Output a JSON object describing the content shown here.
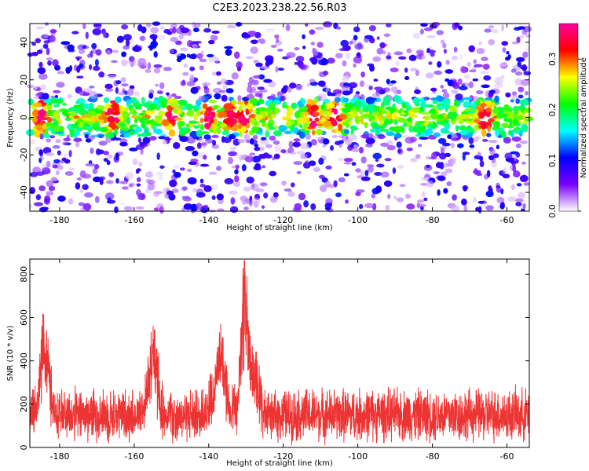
{
  "title": "C2E3.2023.238.22.56.R03",
  "chart_data": [
    {
      "type": "heatmap",
      "xlabel": "Height of straight line (km)",
      "ylabel": "Frequency (Hz)",
      "xlim": [
        -188,
        -54
      ],
      "ylim": [
        -50,
        50
      ],
      "xticks": [
        -180,
        -160,
        -140,
        -120,
        -100,
        -80,
        -60
      ],
      "yticks": [
        -40,
        -20,
        0,
        20,
        40
      ],
      "colorbar": {
        "label": "Normalized spectral amplitude",
        "range": [
          0.0,
          0.37
        ],
        "ticks": [
          0.0,
          0.1,
          0.2,
          0.3
        ],
        "colors": [
          "#ffffff",
          "#7a00ff",
          "#0000ff",
          "#00ffff",
          "#00ff00",
          "#ffff00",
          "#ff0000",
          "#ff00a0"
        ]
      },
      "description_values": {
        "band_center_hz": 0,
        "band_halfwidth_hz": 10,
        "hotspots_km": [
          -185,
          -166,
          -150,
          -140,
          -134,
          -130,
          -112,
          -106,
          -66
        ]
      }
    },
    {
      "type": "line",
      "xlabel": "Height of straight line (km)",
      "ylabel": "SNR (10 * v/v)",
      "xlim": [
        -188,
        -54
      ],
      "ylim": [
        0,
        870
      ],
      "xticks": [
        -180,
        -160,
        -140,
        -120,
        -100,
        -80,
        -60
      ],
      "yticks": [
        0,
        200,
        400,
        600,
        800
      ],
      "color": "#ee3333",
      "features": [
        {
          "x": -188,
          "baseline": 150,
          "spread": 130
        },
        {
          "x": -184,
          "peak": 610
        },
        {
          "x": -155,
          "peak": 550
        },
        {
          "x": -137,
          "peak": 530
        },
        {
          "x": -130.5,
          "peak": 860
        },
        {
          "x": -128,
          "peak": 420
        },
        {
          "x": -54,
          "baseline": 150,
          "spread": 120
        }
      ]
    }
  ]
}
